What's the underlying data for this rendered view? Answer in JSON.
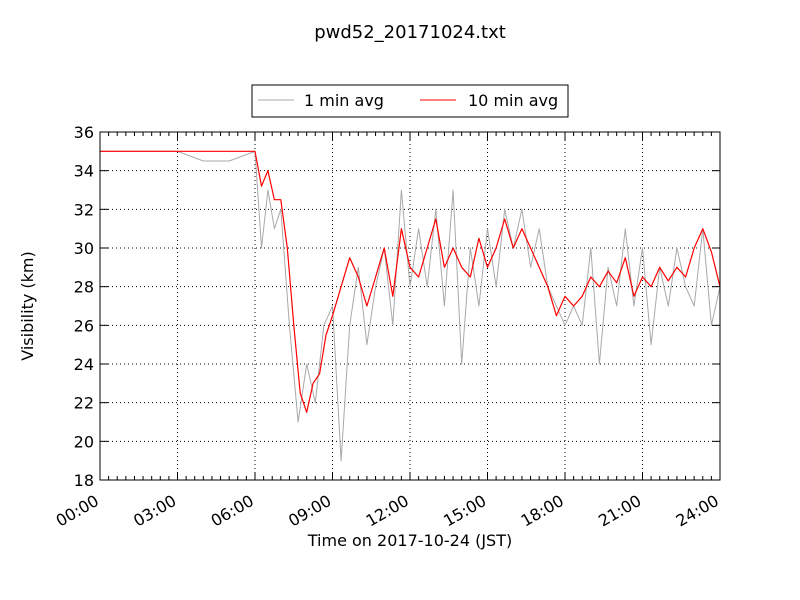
{
  "chart_data": {
    "type": "line",
    "title": "pwd52_20171024.txt",
    "xlabel": "Time on 2017-10-24 (JST)",
    "ylabel": "Visibility (km)",
    "xlim": [
      "00:00",
      "24:00"
    ],
    "ylim": [
      18,
      36
    ],
    "x_ticks": [
      "00:00",
      "03:00",
      "06:00",
      "09:00",
      "12:00",
      "15:00",
      "18:00",
      "21:00",
      "24:00"
    ],
    "y_ticks": [
      18,
      20,
      22,
      24,
      26,
      28,
      30,
      32,
      34,
      36
    ],
    "grid": true,
    "legend": {
      "placement": "top-center"
    },
    "series": [
      {
        "name": "1 min avg",
        "color": "#a9a9a9",
        "x": [
          "00:00",
          "03:00",
          "04:00",
          "05:00",
          "06:00",
          "06:15",
          "06:30",
          "06:45",
          "07:00",
          "07:20",
          "07:40",
          "08:00",
          "08:20",
          "08:40",
          "09:00",
          "09:20",
          "09:40",
          "10:00",
          "10:20",
          "10:40",
          "11:00",
          "11:20",
          "11:40",
          "12:00",
          "12:20",
          "12:40",
          "13:00",
          "13:20",
          "13:40",
          "14:00",
          "14:20",
          "14:40",
          "15:00",
          "15:20",
          "15:40",
          "16:00",
          "16:20",
          "16:40",
          "17:00",
          "17:20",
          "17:40",
          "18:00",
          "18:20",
          "18:40",
          "19:00",
          "19:20",
          "19:40",
          "20:00",
          "20:20",
          "20:40",
          "21:00",
          "21:20",
          "21:40",
          "22:00",
          "22:20",
          "22:40",
          "23:00",
          "23:20",
          "23:40",
          "24:00"
        ],
        "y": [
          35,
          35,
          34.5,
          34.5,
          35,
          30,
          33,
          31,
          32,
          26,
          21,
          24,
          22,
          26,
          27,
          19,
          26,
          29,
          25,
          28,
          30,
          26,
          33,
          28,
          31,
          28,
          32,
          27,
          33,
          24,
          30,
          27,
          31,
          28,
          32,
          30,
          32,
          29,
          31,
          28,
          27,
          26,
          27,
          26,
          30,
          24,
          29,
          27,
          31,
          27,
          30,
          25,
          29,
          27,
          30,
          28,
          27,
          31,
          26,
          28
        ]
      },
      {
        "name": "10 min avg",
        "color": "#ff0000",
        "x": [
          "00:00",
          "03:00",
          "06:00",
          "06:15",
          "06:30",
          "06:45",
          "07:00",
          "07:15",
          "07:30",
          "07:45",
          "08:00",
          "08:15",
          "08:30",
          "08:45",
          "09:00",
          "09:20",
          "09:40",
          "10:00",
          "10:20",
          "10:40",
          "11:00",
          "11:20",
          "11:40",
          "12:00",
          "12:20",
          "12:40",
          "13:00",
          "13:20",
          "13:40",
          "14:00",
          "14:20",
          "14:40",
          "15:00",
          "15:20",
          "15:40",
          "16:00",
          "16:20",
          "16:40",
          "17:00",
          "17:20",
          "17:40",
          "18:00",
          "18:20",
          "18:40",
          "19:00",
          "19:20",
          "19:40",
          "20:00",
          "20:20",
          "20:40",
          "21:00",
          "21:20",
          "21:40",
          "22:00",
          "22:20",
          "22:40",
          "23:00",
          "23:20",
          "23:40",
          "24:00"
        ],
        "y": [
          35,
          35,
          35,
          33.2,
          34,
          32.5,
          32.5,
          30,
          26,
          22.5,
          21.5,
          23,
          23.5,
          25.5,
          26.5,
          28,
          29.5,
          28.5,
          27,
          28.5,
          30,
          27.5,
          31,
          29,
          28.5,
          30,
          31.5,
          29,
          30,
          29,
          28.5,
          30.5,
          29,
          30,
          31.5,
          30,
          31,
          30,
          29,
          28,
          26.5,
          27.5,
          27,
          27.5,
          28.5,
          28,
          28.8,
          28.2,
          29.5,
          27.5,
          28.5,
          28,
          29,
          28.3,
          29,
          28.5,
          30,
          31,
          29.8,
          28
        ]
      }
    ]
  }
}
